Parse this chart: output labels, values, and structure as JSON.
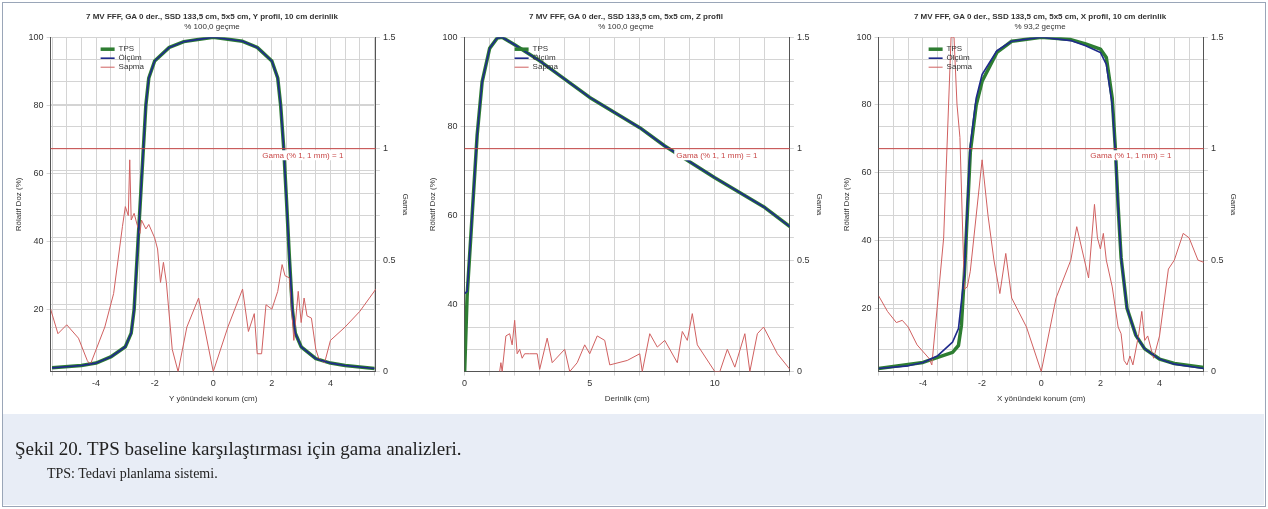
{
  "chart_data": [
    {
      "type": "line",
      "title": "7 MV FFF, GA 0 der., SSD 133,5 cm, 5x5 cm, Y profil, 10 cm derinlik",
      "subtitle": "% 100,0 geçme",
      "xlabel": "Y yönündeki konum (cm)",
      "ylabel": "Rölatif Doz (%)",
      "y2label": "Gama",
      "legend": "top left",
      "grid": true,
      "marker": "none",
      "line_style": "solid",
      "xlim": [
        -5.55,
        5.55
      ],
      "xticks": [
        {
          "value": -5.5,
          "label": null
        },
        {
          "value": -5,
          "label": null
        },
        {
          "value": -4.5,
          "label": null
        },
        -4,
        {
          "value": -3.5,
          "label": null
        },
        {
          "value": -3,
          "label": null
        },
        {
          "value": -2.5,
          "label": null
        },
        -2,
        {
          "value": -1.5,
          "label": null
        },
        {
          "value": -1,
          "label": null
        },
        {
          "value": -0.5,
          "label": null
        },
        0,
        {
          "value": 0.5,
          "label": null
        },
        {
          "value": 1,
          "label": null
        },
        {
          "value": 1.5,
          "label": null
        },
        2,
        {
          "value": 2.5,
          "label": null
        },
        {
          "value": 3,
          "label": null
        },
        {
          "value": 3.5,
          "label": null
        },
        4,
        {
          "value": 4.5,
          "label": null
        },
        {
          "value": 5,
          "label": null
        },
        {
          "value": 5.5,
          "label": null
        }
      ],
      "ylim": [
        1.7,
        100
      ],
      "yticks": [
        20,
        40,
        60,
        80,
        100
      ],
      "y2lim": [
        0,
        1.5
      ],
      "y2ticks": [
        0,
        {
          "value": 0.1,
          "label": null
        },
        {
          "value": 0.2,
          "label": null
        },
        {
          "value": 0.3,
          "label": null
        },
        {
          "value": 0.4,
          "label": null
        },
        0.5,
        {
          "value": 0.6,
          "label": null
        },
        {
          "value": 0.7,
          "label": null
        },
        {
          "value": 0.8,
          "label": null
        },
        {
          "value": 0.9,
          "label": null
        },
        1,
        {
          "value": 1.1,
          "label": null
        },
        {
          "value": 1.2,
          "label": null
        },
        {
          "value": 1.3,
          "label": null
        },
        {
          "value": 1.4,
          "label": null
        },
        1.5
      ],
      "ref_lines": [
        {
          "axis": "y2",
          "value": 1,
          "label": "Gama (% 1, 1 mm) = 1",
          "color": "#c84848"
        }
      ],
      "annotations": [
        "Şekil 20. TPS baseline karşılaştırması için gama analizleri.",
        "TPS: Tedavi planlama sistemi."
      ],
      "series": [
        {
          "name": "TPS",
          "color": "#2e7d32",
          "x": [
            -5.5,
            -4.5,
            -4,
            -3.5,
            -3,
            -2.8,
            -2.7,
            -2.6,
            -2.5,
            -2.4,
            -2.3,
            -2.2,
            -2,
            -1.5,
            -1,
            0,
            1,
            1.5,
            2,
            2.2,
            2.3,
            2.4,
            2.5,
            2.6,
            2.7,
            2.8,
            3,
            3.5,
            4,
            4.5,
            5.5
          ],
          "values": [
            2.8,
            3.5,
            4.2,
            6,
            9,
            13,
            20,
            35,
            50,
            65,
            80,
            88,
            93,
            97,
            98.7,
            100,
            98.8,
            97,
            93,
            88,
            80,
            68,
            52,
            35,
            20,
            13,
            9,
            5.5,
            4.2,
            3.5,
            2.6
          ]
        },
        {
          "name": "Ölçüm",
          "color": "#1f2a8c",
          "x": [
            -5.5,
            -4.5,
            -4,
            -3.5,
            -3,
            -2.8,
            -2.7,
            -2.6,
            -2.5,
            -2.4,
            -2.3,
            -2.2,
            -2,
            -1.5,
            -1,
            0,
            1,
            1.5,
            2,
            2.2,
            2.3,
            2.4,
            2.5,
            2.6,
            2.7,
            2.8,
            3,
            3.5,
            4,
            4.5,
            5.5
          ],
          "values": [
            2.8,
            3.5,
            4.2,
            6,
            9,
            13,
            20,
            35,
            50,
            65,
            80,
            88,
            93,
            97,
            98.7,
            100,
            98.8,
            97,
            93,
            88,
            80,
            68,
            52,
            35,
            20,
            13,
            9,
            5.5,
            4.2,
            3.5,
            2.6
          ]
        },
        {
          "name": "Sapma",
          "color": "#d06060",
          "axis": "y2",
          "x": [
            -5.55,
            -5.3,
            -5,
            -4.6,
            -4.3,
            -4.2,
            -3.7,
            -3.4,
            -3.1,
            -3,
            -2.9,
            -2.85,
            -2.8,
            -2.7,
            -2.6,
            -2.5,
            -2.45,
            -2.3,
            -2.2,
            -2,
            -1.9,
            -1.8,
            -1.7,
            -1.6,
            -1.4,
            -1.2,
            -0.9,
            -0.5,
            0,
            0.5,
            1,
            1.2,
            1.4,
            1.5,
            1.65,
            1.8,
            2,
            2.2,
            2.35,
            2.45,
            2.6,
            2.75,
            2.9,
            3,
            3.1,
            3.2,
            3.35,
            3.5,
            3.6,
            3.8,
            4,
            4.5,
            5,
            5.55
          ],
          "values": [
            0.28,
            0.17,
            0.21,
            0.15,
            0.05,
            0.03,
            0.2,
            0.35,
            0.65,
            0.74,
            0.7,
            0.95,
            0.68,
            0.71,
            0.66,
            0.62,
            0.68,
            0.64,
            0.66,
            0.6,
            0.55,
            0.4,
            0.49,
            0.4,
            0.1,
            0,
            0.2,
            0.33,
            0,
            0.2,
            0.37,
            0.18,
            0.26,
            0.08,
            0.08,
            0.3,
            0.28,
            0.36,
            0.48,
            0.43,
            0.42,
            0.14,
            0.36,
            0.22,
            0.33,
            0.25,
            0.24,
            0.1,
            0.06,
            0.04,
            0.14,
            0.2,
            0.27,
            0.37
          ]
        }
      ]
    },
    {
      "type": "line",
      "title": "7 MV FFF, GA 0 der., SSD 133,5 cm, 5x5 cm, Z profil",
      "subtitle": "% 100,0 geçme",
      "xlabel": "Derinlik (cm)",
      "ylabel": "Rölatif Doz (%)",
      "y2label": "Gama",
      "legend": "top left",
      "grid": true,
      "marker": "none",
      "line_style": "solid",
      "xlim": [
        0,
        13
      ],
      "xticks": [
        0,
        {
          "value": 1,
          "label": null
        },
        {
          "value": 2,
          "label": null
        },
        {
          "value": 3,
          "label": null
        },
        {
          "value": 4,
          "label": null
        },
        5,
        {
          "value": 6,
          "label": null
        },
        {
          "value": 7,
          "label": null
        },
        {
          "value": 8,
          "label": null
        },
        {
          "value": 9,
          "label": null
        },
        10,
        {
          "value": 11,
          "label": null
        },
        {
          "value": 12,
          "label": null
        },
        {
          "value": 13,
          "label": null
        }
      ],
      "ylim": [
        25,
        100
      ],
      "yticks": [
        40,
        60,
        80,
        100
      ],
      "y2lim": [
        0,
        1.5
      ],
      "y2ticks": [
        0,
        {
          "value": 0.1,
          "label": null
        },
        {
          "value": 0.2,
          "label": null
        },
        {
          "value": 0.3,
          "label": null
        },
        {
          "value": 0.4,
          "label": null
        },
        0.5,
        {
          "value": 0.6,
          "label": null
        },
        {
          "value": 0.7,
          "label": null
        },
        {
          "value": 0.8,
          "label": null
        },
        {
          "value": 0.9,
          "label": null
        },
        1,
        {
          "value": 1.1,
          "label": null
        },
        {
          "value": 1.2,
          "label": null
        },
        {
          "value": 1.3,
          "label": null
        },
        {
          "value": 1.4,
          "label": null
        },
        1.5
      ],
      "ref_lines": [
        {
          "axis": "y2",
          "value": 1,
          "label": "Gama (% 1, 1 mm) = 1",
          "color": "#c84848"
        }
      ],
      "series": [
        {
          "name": "TPS",
          "color": "#2e7d32",
          "x": [
            0,
            0.1,
            0.3,
            0.5,
            0.7,
            1,
            1.3,
            1.5,
            2,
            3,
            5,
            7,
            8,
            10,
            12,
            13
          ],
          "values": [
            25,
            42,
            60,
            78,
            90,
            97.5,
            99.8,
            100,
            98.3,
            94.7,
            86.5,
            79.7,
            75.6,
            68.5,
            61.8,
            57.5
          ]
        },
        {
          "name": "Ölçüm",
          "color": "#1f2a8c",
          "x": [
            0,
            0.1,
            0.3,
            0.5,
            0.7,
            1,
            1.3,
            1.5,
            2,
            3,
            5,
            7,
            8,
            10,
            12,
            13
          ],
          "values": [
            42.5,
            43,
            60,
            78,
            90,
            97.5,
            99.8,
            100,
            98.3,
            94.7,
            86.5,
            79.7,
            75.6,
            68.5,
            61.8,
            57.5
          ]
        },
        {
          "name": "Sapma",
          "color": "#d06060",
          "axis": "y2",
          "x": [
            1.4,
            1.45,
            1.5,
            1.65,
            1.8,
            1.9,
            2,
            2.1,
            2.2,
            2.3,
            2.4,
            2.6,
            2.9,
            3,
            3.3,
            3.5,
            4,
            4.2,
            4.5,
            4.8,
            5,
            5.3,
            5.6,
            5.8,
            6.5,
            7,
            7.1,
            7.4,
            7.7,
            8,
            8.5,
            8.7,
            8.9,
            9.1,
            9.3,
            10,
            10.2,
            10.5,
            10.8,
            11.2,
            11.4,
            11.7,
            11.95,
            12.5,
            13
          ],
          "values": [
            0,
            0.04,
            0,
            0.16,
            0.17,
            0.12,
            0.23,
            0.08,
            0.1,
            0.06,
            0.08,
            0.08,
            0.08,
            0.01,
            0.15,
            0.04,
            0.1,
            0,
            0.04,
            0.12,
            0.08,
            0.16,
            0.14,
            0.03,
            0.05,
            0.08,
            0,
            0.17,
            0.11,
            0.14,
            0.04,
            0.18,
            0.14,
            0.26,
            0.12,
            0,
            0,
            0.1,
            0.02,
            0.17,
            0,
            0.17,
            0.2,
            0.08,
            0.01
          ]
        }
      ]
    },
    {
      "type": "line",
      "title": "7 MV FFF, GA 0 der., SSD 133,5 cm, 5x5 cm, X profil, 10 cm derinlik",
      "subtitle": "% 93,2 geçme",
      "xlabel": "X yönündeki konum (cm)",
      "ylabel": "Rölatif Doz (%)",
      "y2label": "Gama",
      "legend": "top left",
      "grid": true,
      "marker": "none",
      "line_style": "solid",
      "xlim": [
        -5.5,
        5.5
      ],
      "xticks": [
        {
          "value": -5.5,
          "label": null
        },
        {
          "value": -5,
          "label": null
        },
        {
          "value": -4.5,
          "label": null
        },
        -4,
        {
          "value": -3.5,
          "label": null
        },
        {
          "value": -3,
          "label": null
        },
        {
          "value": -2.5,
          "label": null
        },
        -2,
        {
          "value": -1.5,
          "label": null
        },
        {
          "value": -1,
          "label": null
        },
        {
          "value": -0.5,
          "label": null
        },
        0,
        {
          "value": 0.5,
          "label": null
        },
        {
          "value": 1,
          "label": null
        },
        {
          "value": 1.5,
          "label": null
        },
        2,
        {
          "value": 2.5,
          "label": null
        },
        {
          "value": 3,
          "label": null
        },
        {
          "value": 3.5,
          "label": null
        },
        4,
        {
          "value": 4.5,
          "label": null
        },
        {
          "value": 5,
          "label": null
        },
        {
          "value": 5.5,
          "label": null
        }
      ],
      "ylim": [
        1.3,
        100
      ],
      "yticks": [
        20,
        40,
        60,
        80,
        100
      ],
      "y2lim": [
        0,
        1.5
      ],
      "y2ticks": [
        0,
        {
          "value": 0.1,
          "label": null
        },
        {
          "value": 0.2,
          "label": null
        },
        {
          "value": 0.3,
          "label": null
        },
        {
          "value": 0.4,
          "label": null
        },
        0.5,
        {
          "value": 0.6,
          "label": null
        },
        {
          "value": 0.7,
          "label": null
        },
        {
          "value": 0.8,
          "label": null
        },
        {
          "value": 0.9,
          "label": null
        },
        1,
        {
          "value": 1.1,
          "label": null
        },
        {
          "value": 1.2,
          "label": null
        },
        {
          "value": 1.3,
          "label": null
        },
        {
          "value": 1.4,
          "label": null
        },
        1.5
      ],
      "ref_lines": [
        {
          "axis": "y2",
          "value": 1,
          "label": "Gama (% 1, 1 mm) = 1",
          "color": "#c84848"
        }
      ],
      "series": [
        {
          "name": "TPS",
          "color": "#2e7d32",
          "x": [
            -5.5,
            -4,
            -3.5,
            -3,
            -2.8,
            -2.7,
            -2.6,
            -2.5,
            -2.4,
            -2.2,
            -2,
            -1.5,
            -1,
            0,
            1,
            1.5,
            2,
            2.2,
            2.4,
            2.5,
            2.6,
            2.7,
            2.9,
            3.2,
            3.5,
            4,
            4.5,
            5.5
          ],
          "values": [
            2.2,
            4,
            5.5,
            7,
            9,
            15,
            30,
            48,
            66,
            80,
            87,
            95.5,
            98.8,
            100,
            99.3,
            98,
            96.5,
            94,
            82,
            68,
            50,
            35,
            20,
            12,
            8,
            5,
            3.7,
            2.5
          ]
        },
        {
          "name": "Ölçüm",
          "color": "#1f2a8c",
          "x": [
            -5.5,
            -4.5,
            -4,
            -3.5,
            -3,
            -2.8,
            -2.6,
            -2.5,
            -2.4,
            -2.2,
            -2,
            -1.5,
            -1,
            0,
            1,
            1.5,
            2,
            2.2,
            2.4,
            2.5,
            2.6,
            2.7,
            2.9,
            3.2,
            3.5,
            4,
            4.5,
            5.5
          ],
          "values": [
            2.2,
            3,
            4,
            6,
            10,
            14,
            30,
            50,
            68,
            82,
            89,
            96,
            98.8,
            100,
            99,
            97.5,
            95.5,
            92,
            80,
            67,
            50,
            35,
            20,
            12,
            8,
            5,
            3.5,
            2.2
          ]
        },
        {
          "name": "Sapma",
          "color": "#d06060",
          "axis": "y2",
          "x": [
            -5.5,
            -5.2,
            -4.9,
            -4.7,
            -4.5,
            -4.2,
            -3.8,
            -3.7,
            -3.3,
            -3.05,
            -2.95,
            -2.85,
            -2.75,
            -2.6,
            -2.5,
            -2.4,
            -2,
            -1.8,
            -1.6,
            -1.4,
            -1.2,
            -1,
            -0.5,
            0,
            0.5,
            1,
            1.2,
            1.6,
            1.8,
            1.9,
            2,
            2.1,
            2.2,
            2.4,
            2.6,
            2.7,
            2.8,
            2.9,
            3,
            3.1,
            3.3,
            3.4,
            3.5,
            3.6,
            3.8,
            4,
            4.3,
            4.5,
            4.8,
            5,
            5.3,
            5.5
          ],
          "values": [
            0.34,
            0.27,
            0.22,
            0.23,
            0.2,
            0.12,
            0.06,
            0.03,
            0.6,
            1.5,
            1.5,
            1.2,
            1.05,
            0.37,
            0.38,
            0.45,
            0.95,
            0.7,
            0.5,
            0.35,
            0.53,
            0.33,
            0.2,
            0,
            0.33,
            0.5,
            0.65,
            0.42,
            0.75,
            0.6,
            0.55,
            0.62,
            0.5,
            0.38,
            0.2,
            0.17,
            0.05,
            0.03,
            0.07,
            0.03,
            0.17,
            0.27,
            0.14,
            0.16,
            0.06,
            0.16,
            0.46,
            0.5,
            0.62,
            0.6,
            0.5,
            0.49
          ]
        }
      ]
    }
  ]
}
